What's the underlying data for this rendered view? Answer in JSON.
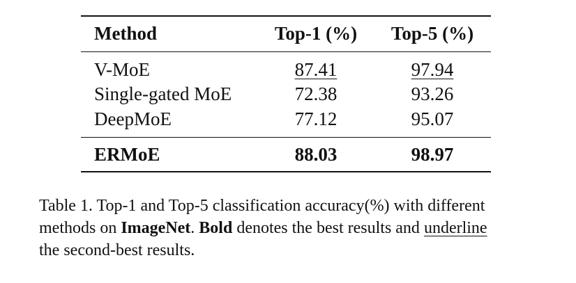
{
  "table": {
    "header": [
      "Method",
      "Top-1 (%)",
      "Top-5 (%)"
    ],
    "rows": [
      [
        "V-MoE",
        "87.41",
        "97.94"
      ],
      [
        "Single-gated MoE",
        "72.38",
        "93.26"
      ],
      [
        "DeepMoE",
        "77.12",
        "95.07"
      ],
      [
        "ERMoE",
        "88.03",
        "98.97"
      ]
    ]
  },
  "caption": {
    "segments": [
      "Table 1. Top-1 and Top-5 classification accuracy(%) with different",
      "methods on ",
      "ImageNet",
      ". ",
      "Bold",
      " denotes the best results and ",
      "underline",
      "the second-best results."
    ]
  }
}
